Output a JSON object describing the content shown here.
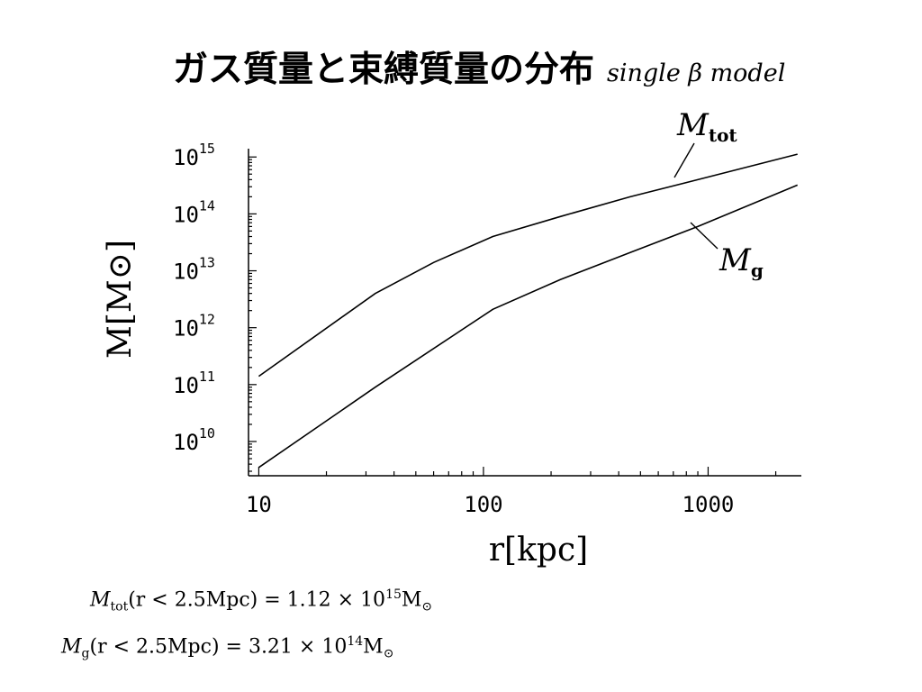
{
  "slide": {
    "title": "ガス質量と束縛質量の分布",
    "subtitle": "single β model"
  },
  "chart_data": {
    "type": "line",
    "title": "",
    "xlabel": "r[kpc]",
    "ylabel": "M[M⊙]",
    "xscale": "log",
    "yscale": "log",
    "xlim": [
      9,
      2600
    ],
    "ylim": [
      2500000000.0,
      1400000000000000.0
    ],
    "x_ticks": [
      "10",
      "100",
      "1000"
    ],
    "y_ticks": [
      {
        "mantissa": "10",
        "exp": "10"
      },
      {
        "mantissa": "10",
        "exp": "11"
      },
      {
        "mantissa": "10",
        "exp": "12"
      },
      {
        "mantissa": "10",
        "exp": "13"
      },
      {
        "mantissa": "10",
        "exp": "14"
      },
      {
        "mantissa": "10",
        "exp": "15"
      }
    ],
    "grid": false,
    "series": [
      {
        "name": "Mtot",
        "label_main": "M",
        "label_sub": "tot",
        "x": [
          10,
          33,
          60,
          110,
          220,
          450,
          900,
          2500
        ],
        "y": [
          140000000000.0,
          4000000000000.0,
          14000000000000.0,
          40000000000000.0,
          90000000000000.0,
          200000000000000.0,
          400000000000000.0,
          1120000000000000.0
        ]
      },
      {
        "name": "Mg",
        "label_main": "M",
        "label_sub": "g",
        "x": [
          10,
          33,
          110,
          220,
          450,
          900,
          2500
        ],
        "y": [
          3500000000.0,
          90000000000.0,
          2100000000000.0,
          7000000000000.0,
          21000000000000.0,
          60000000000000.0,
          321000000000000.0
        ]
      }
    ]
  },
  "notes": [
    {
      "var": "M",
      "sub": "tot",
      "cond": "(r < 2.5Mpc) = 1.12 × 10",
      "exp": "15",
      "unit": "M",
      "unit_sub": "⊙"
    },
    {
      "var": "M",
      "sub": "g",
      "cond": "(r < 2.5Mpc) = 3.21 × 10",
      "exp": "14",
      "unit": "M",
      "unit_sub": "⊙"
    }
  ]
}
